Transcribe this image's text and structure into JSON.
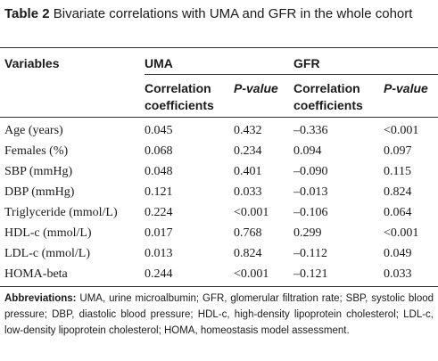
{
  "caption": {
    "label": "Table 2",
    "text": "Bivariate correlations with UMA and GFR in the whole cohort"
  },
  "header": {
    "variables": "Variables",
    "uma": "UMA",
    "gfr": "GFR",
    "uma_corr_line1": "Correlation",
    "uma_corr_line2": "coefficients",
    "uma_p": "P-value",
    "gfr_corr_line1": "Correlation",
    "gfr_corr_line2": "coefficients",
    "gfr_p": "P-value"
  },
  "rows": [
    {
      "variable": "Age (years)",
      "uma_r": "0.045",
      "uma_p": "0.432",
      "gfr_r": "–0.336",
      "gfr_p": "<0.001"
    },
    {
      "variable": "Females (%)",
      "uma_r": "0.068",
      "uma_p": "0.234",
      "gfr_r": "0.094",
      "gfr_p": "0.097"
    },
    {
      "variable": "SBP (mmHg)",
      "uma_r": "0.048",
      "uma_p": "0.401",
      "gfr_r": "–0.090",
      "gfr_p": "0.115"
    },
    {
      "variable": "DBP (mmHg)",
      "uma_r": "0.121",
      "uma_p": "0.033",
      "gfr_r": "–0.013",
      "gfr_p": "0.824"
    },
    {
      "variable": "Triglyceride (mmol/L)",
      "uma_r": "0.224",
      "uma_p": "<0.001",
      "gfr_r": "–0.106",
      "gfr_p": "0.064"
    },
    {
      "variable": "HDL-c (mmol/L)",
      "uma_r": "0.017",
      "uma_p": "0.768",
      "gfr_r": "0.299",
      "gfr_p": "<0.001"
    },
    {
      "variable": "LDL-c (mmol/L)",
      "uma_r": "0.013",
      "uma_p": "0.824",
      "gfr_r": "–0.112",
      "gfr_p": "0.049"
    },
    {
      "variable": "HOMA-beta",
      "uma_r": "0.244",
      "uma_p": "<0.001",
      "gfr_r": "–0.121",
      "gfr_p": "0.033"
    }
  ],
  "footnote": {
    "label": "Abbreviations:",
    "text": "UMA, urine microalbumin; GFR, glomerular filtration rate; SBP, systolic blood pressure; DBP, diastolic blood pressure; HDL-c, high-density lipoprotein cholesterol; LDL-c, low-density lipoprotein cholesterol; HOMA, homeostasis model assessment."
  }
}
